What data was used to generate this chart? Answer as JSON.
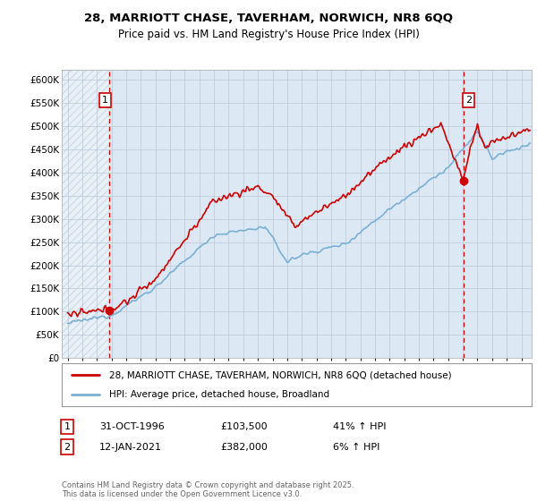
{
  "title_line1": "28, MARRIOTT CHASE, TAVERHAM, NORWICH, NR8 6QQ",
  "title_line2": "Price paid vs. HM Land Registry's House Price Index (HPI)",
  "legend_line1": "28, MARRIOTT CHASE, TAVERHAM, NORWICH, NR8 6QQ (detached house)",
  "legend_line2": "HPI: Average price, detached house, Broadland",
  "footnote": "Contains HM Land Registry data © Crown copyright and database right 2025.\nThis data is licensed under the Open Government Licence v3.0.",
  "annotation1_date": "31-OCT-1996",
  "annotation1_price": "£103,500",
  "annotation1_hpi": "41% ↑ HPI",
  "annotation2_date": "12-JAN-2021",
  "annotation2_price": "£382,000",
  "annotation2_hpi": "6% ↑ HPI",
  "sale1_x": 1996.83,
  "sale1_y": 103500,
  "sale2_x": 2021.04,
  "sale2_y": 382000,
  "hpi_color": "#7bafd4",
  "price_color": "#cc0000",
  "plot_bg": "#dce9f5",
  "hatch_color": "#c8d8e8",
  "grid_color": "#b8c8d8",
  "ylim": [
    0,
    620000
  ],
  "xlim_left": 1993.6,
  "xlim_right": 2025.7,
  "yticks": [
    0,
    50000,
    100000,
    150000,
    200000,
    250000,
    300000,
    350000,
    400000,
    450000,
    500000,
    550000,
    600000
  ],
  "xticks": [
    1994,
    1995,
    1996,
    1997,
    1998,
    1999,
    2000,
    2001,
    2002,
    2003,
    2004,
    2005,
    2006,
    2007,
    2008,
    2009,
    2010,
    2011,
    2012,
    2013,
    2014,
    2015,
    2016,
    2017,
    2018,
    2019,
    2020,
    2021,
    2022,
    2023,
    2024,
    2025
  ]
}
